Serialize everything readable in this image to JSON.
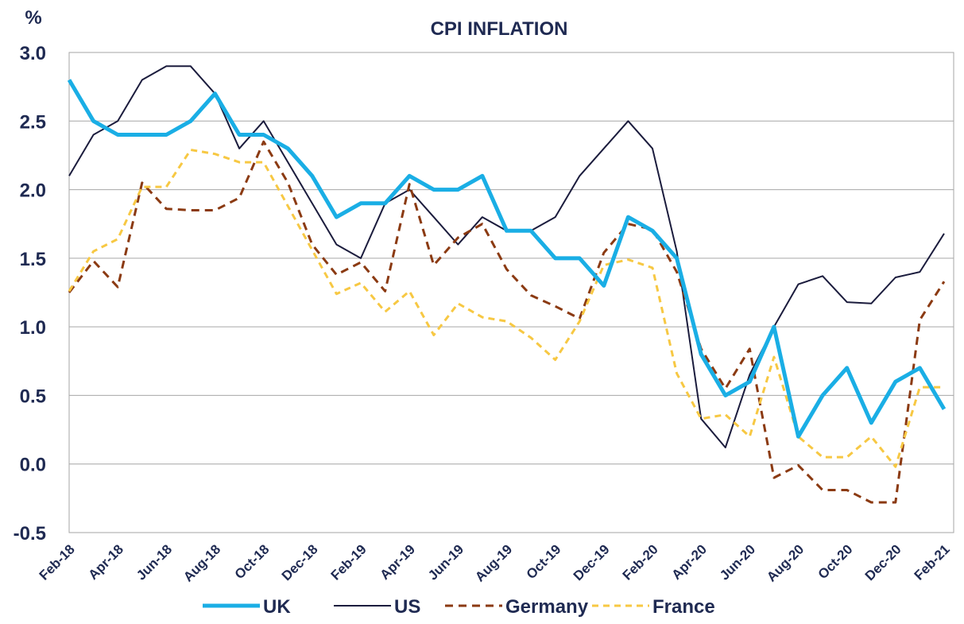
{
  "chart_data": {
    "type": "line",
    "title": "CPI INFLATION",
    "y_label": "%",
    "categories": [
      "Feb-18",
      null,
      "Apr-18",
      null,
      "Jun-18",
      null,
      "Aug-18",
      null,
      "Oct-18",
      null,
      "Dec-18",
      null,
      "Feb-19",
      null,
      "Apr-19",
      null,
      "Jun-19",
      null,
      "Aug-19",
      null,
      "Oct-19",
      null,
      "Dec-19",
      null,
      "Feb-20",
      null,
      "Apr-20",
      null,
      "Jun-20",
      null,
      "Aug-20",
      null,
      "Oct-20",
      null,
      "Dec-20",
      null,
      "Feb-21"
    ],
    "series": [
      {
        "name": "UK",
        "color": "#1aaee5",
        "width": 5,
        "dash": "none",
        "values": [
          2.8,
          2.5,
          2.4,
          2.4,
          2.4,
          2.5,
          2.7,
          2.4,
          2.4,
          2.3,
          2.1,
          1.8,
          1.9,
          1.9,
          2.1,
          2.0,
          2.0,
          2.1,
          1.7,
          1.7,
          1.5,
          1.5,
          1.3,
          1.8,
          1.7,
          1.5,
          0.8,
          0.5,
          0.6,
          1.0,
          0.2,
          0.5,
          0.7,
          0.3,
          0.6,
          0.7,
          0.4
        ]
      },
      {
        "name": "US",
        "color": "#1b1c3d",
        "width": 2,
        "dash": "none",
        "values": [
          2.1,
          2.4,
          2.5,
          2.8,
          2.9,
          2.9,
          2.7,
          2.3,
          2.5,
          2.2,
          1.9,
          1.6,
          1.5,
          1.9,
          2.0,
          1.8,
          1.6,
          1.8,
          1.7,
          1.7,
          1.8,
          2.1,
          2.3,
          2.5,
          2.3,
          1.55,
          0.33,
          0.12,
          0.65,
          1.0,
          1.31,
          1.37,
          1.18,
          1.17,
          1.36,
          1.4,
          1.68
        ]
      },
      {
        "name": "Germany",
        "color": "#8b3a12",
        "width": 3,
        "dash": "10 7",
        "values": [
          1.25,
          1.48,
          1.29,
          2.05,
          1.86,
          1.85,
          1.85,
          1.94,
          2.35,
          2.05,
          1.6,
          1.38,
          1.47,
          1.26,
          2.04,
          1.45,
          1.65,
          1.75,
          1.42,
          1.23,
          1.15,
          1.06,
          1.54,
          1.75,
          1.71,
          1.4,
          0.84,
          0.55,
          0.84,
          -0.1,
          -0.01,
          -0.19,
          -0.19,
          -0.28,
          -0.28,
          1.05,
          1.33
        ]
      },
      {
        "name": "France",
        "color": "#f7c843",
        "width": 3,
        "dash": "8 6",
        "values": [
          1.26,
          1.55,
          1.64,
          2.02,
          2.02,
          2.29,
          2.26,
          2.2,
          2.2,
          1.88,
          1.56,
          1.24,
          1.32,
          1.11,
          1.26,
          0.94,
          1.17,
          1.07,
          1.04,
          0.92,
          0.76,
          1.04,
          1.45,
          1.49,
          1.43,
          0.66,
          0.33,
          0.36,
          0.2,
          0.78,
          0.2,
          0.05,
          0.05,
          0.2,
          -0.02,
          0.56,
          0.56
        ]
      }
    ],
    "ylim": [
      -0.5,
      3.0
    ],
    "yticks": [
      {
        "value": -0.5,
        "label": "-0.5"
      },
      {
        "value": 0,
        "label": "0.0"
      },
      {
        "value": 0.5,
        "label": "0.5"
      },
      {
        "value": 1,
        "label": "1.0"
      },
      {
        "value": 1.5,
        "label": "1.5"
      },
      {
        "value": 2,
        "label": "2.0"
      },
      {
        "value": 2.5,
        "label": "2.5"
      },
      {
        "value": 3,
        "label": "3.0"
      }
    ],
    "grid": true,
    "legend": "bottom"
  }
}
